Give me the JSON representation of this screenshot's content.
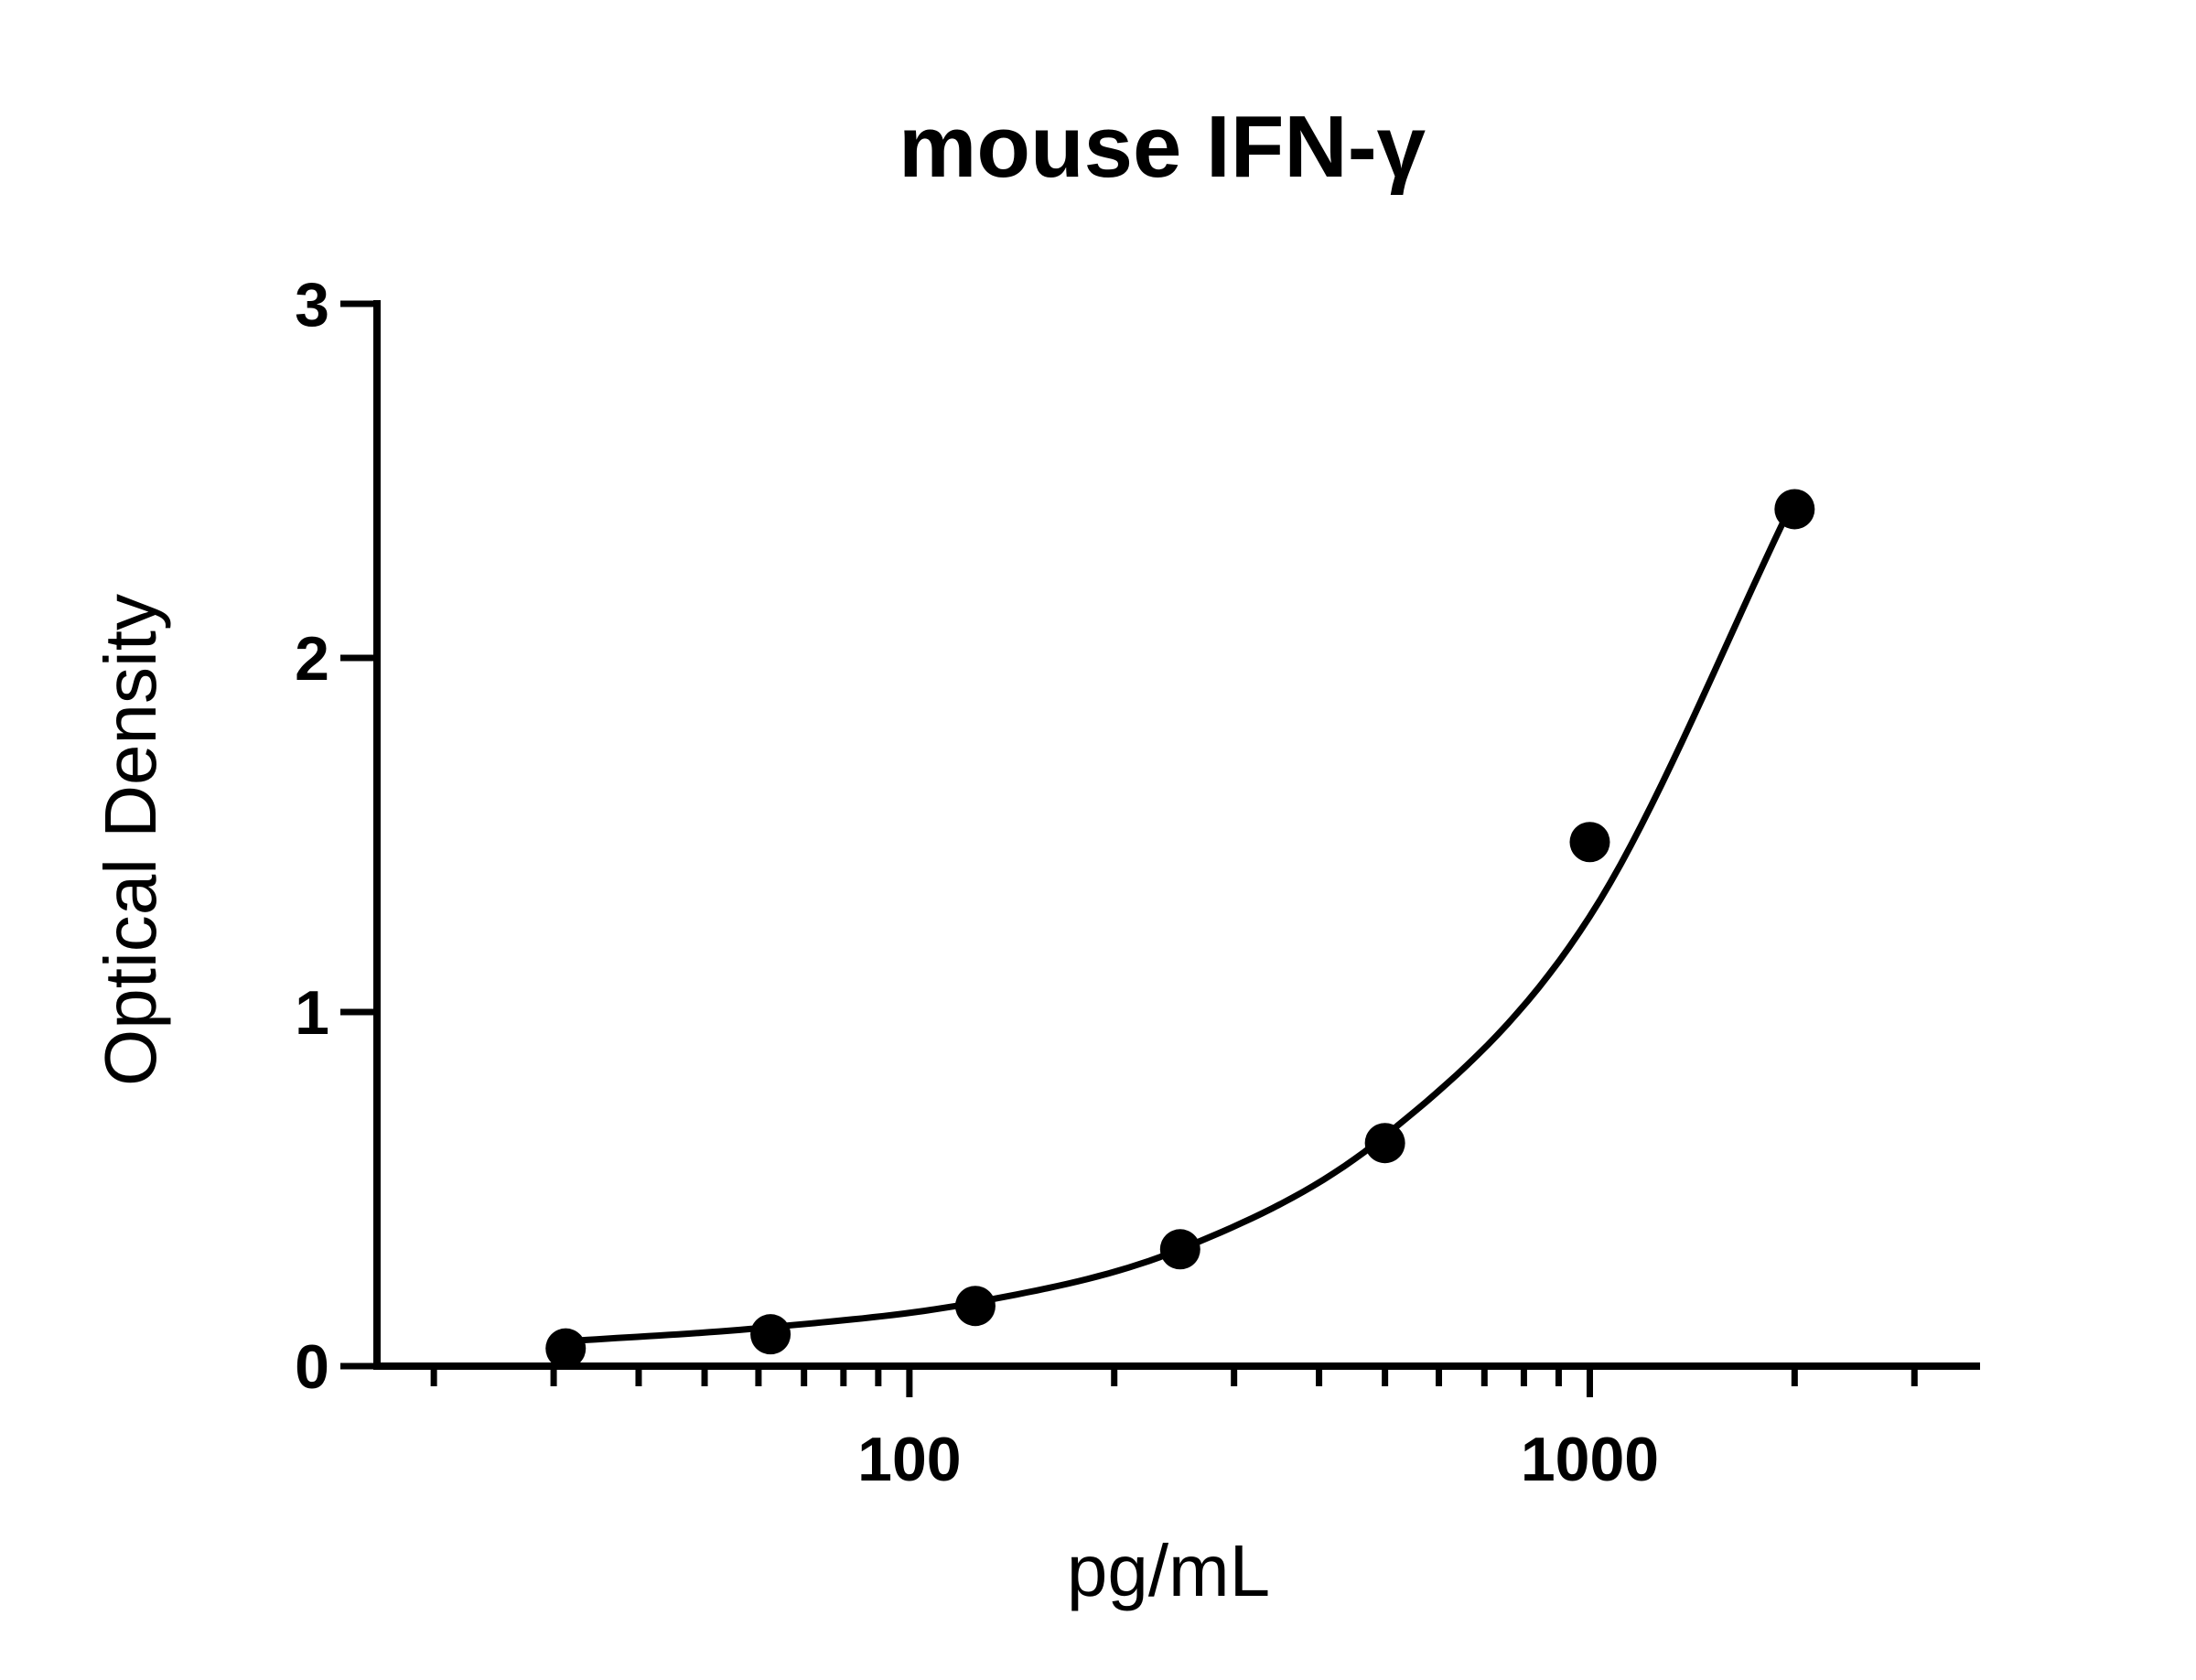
{
  "chart_data": {
    "type": "scatter",
    "title": "mouse IFN-γ",
    "xlabel": "pg/mL",
    "ylabel": "Optical Density",
    "xscale": "log",
    "xlim": [
      16.5,
      3700
    ],
    "ylim": [
      0,
      3
    ],
    "x_tick_labels": [
      {
        "value": 100,
        "label": "100"
      },
      {
        "value": 1000,
        "label": "1000"
      }
    ],
    "y_tick_labels": [
      {
        "value": 0,
        "label": "0"
      },
      {
        "value": 1,
        "label": "1"
      },
      {
        "value": 2,
        "label": "2"
      },
      {
        "value": 3,
        "label": "3"
      }
    ],
    "grid": false,
    "legend": "none",
    "series": [
      {
        "x": [
          31.25,
          62.5,
          125,
          250,
          500,
          1000,
          2000
        ],
        "y": [
          0.05,
          0.09,
          0.17,
          0.33,
          0.63,
          1.48,
          2.42
        ]
      }
    ],
    "fit_curve": {
      "x": [
        31.25,
        62.5,
        125,
        250,
        500,
        1000,
        2000
      ],
      "y": [
        0.07,
        0.11,
        0.18,
        0.33,
        0.65,
        1.27,
        2.45
      ]
    }
  }
}
